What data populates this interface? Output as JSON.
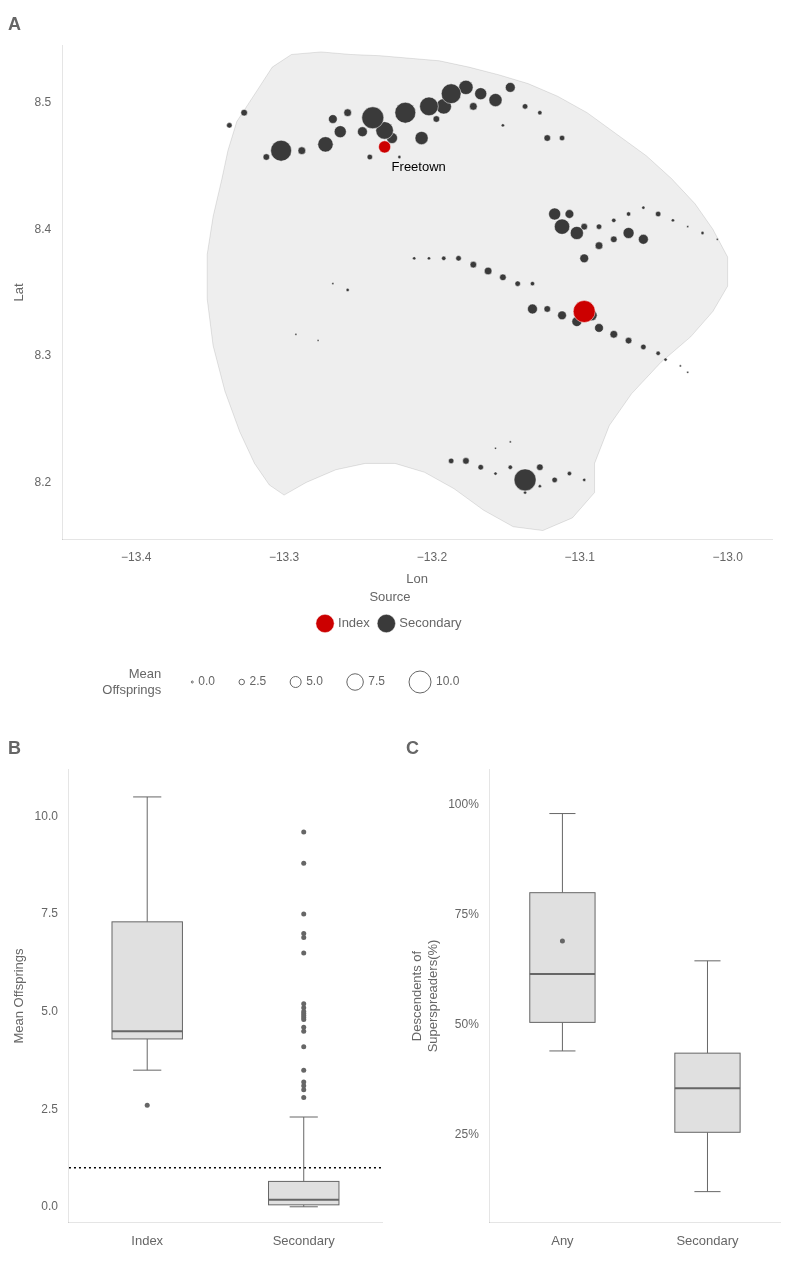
{
  "chart_data": [
    {
      "type": "bubble",
      "title": "A",
      "xlabel": "Lon",
      "ylabel": "Lat",
      "xlim": [
        -13.45,
        -12.97
      ],
      "xticks": [
        {
          "value": -13.4,
          "label": "−13.4"
        },
        {
          "value": -13.3,
          "label": "−13.3"
        },
        {
          "value": -13.2,
          "label": "−13.2"
        },
        {
          "value": -13.1,
          "label": "−13.1"
        },
        {
          "value": -13.0,
          "label": "−13.0"
        }
      ],
      "ylim": [
        8.155,
        8.545
      ],
      "yticks": [
        8.2,
        8.3,
        8.4,
        8.5
      ],
      "grid": false,
      "legend": "bottom",
      "legend_title": "Source",
      "series": [
        {
          "name": "Secondary",
          "color": "#3a3a3a",
          "points": [
            {
              "x": -13.277,
              "y": 8.312,
              "size": 0.8
            },
            {
              "x": -13.027,
              "y": 8.402,
              "size": 1.0
            },
            {
              "x": -13.007,
              "y": 8.392,
              "size": 1.0
            },
            {
              "x": -13.032,
              "y": 8.292,
              "size": 1.0
            },
            {
              "x": -13.027,
              "y": 8.287,
              "size": 1.0
            },
            {
              "x": -13.147,
              "y": 8.232,
              "size": 1.0
            },
            {
              "x": -13.157,
              "y": 8.227,
              "size": 1.0
            },
            {
              "x": -13.267,
              "y": 8.357,
              "size": 1.0
            },
            {
              "x": -13.292,
              "y": 8.317,
              "size": 1.0
            },
            {
              "x": -13.222,
              "y": 8.457,
              "size": 1.5
            },
            {
              "x": -13.152,
              "y": 8.482,
              "size": 1.5
            },
            {
              "x": -13.057,
              "y": 8.417,
              "size": 1.5
            },
            {
              "x": -13.037,
              "y": 8.407,
              "size": 1.5
            },
            {
              "x": -13.017,
              "y": 8.397,
              "size": 1.5
            },
            {
              "x": -13.042,
              "y": 8.297,
              "size": 1.5
            },
            {
              "x": -13.202,
              "y": 8.377,
              "size": 1.5
            },
            {
              "x": -13.212,
              "y": 8.377,
              "size": 1.5
            },
            {
              "x": -13.097,
              "y": 8.202,
              "size": 1.5
            },
            {
              "x": -13.157,
              "y": 8.207,
              "size": 1.5
            },
            {
              "x": -13.127,
              "y": 8.197,
              "size": 1.5
            },
            {
              "x": -13.137,
              "y": 8.192,
              "size": 1.5
            },
            {
              "x": -13.257,
              "y": 8.352,
              "size": 1.5
            },
            {
              "x": -13.127,
              "y": 8.492,
              "size": 2.0
            },
            {
              "x": -13.232,
              "y": 8.462,
              "size": 2.0
            },
            {
              "x": -13.077,
              "y": 8.407,
              "size": 2.0
            },
            {
              "x": -13.067,
              "y": 8.412,
              "size": 2.0
            },
            {
              "x": -13.047,
              "y": 8.302,
              "size": 2.0
            },
            {
              "x": -13.097,
              "y": 8.342,
              "size": 2.0
            },
            {
              "x": -13.132,
              "y": 8.357,
              "size": 2.0
            },
            {
              "x": -13.192,
              "y": 8.377,
              "size": 2.0
            },
            {
              "x": -13.107,
              "y": 8.207,
              "size": 2.0
            },
            {
              "x": -13.147,
              "y": 8.212,
              "size": 2.0
            },
            {
              "x": -13.137,
              "y": 8.497,
              "size": 2.5
            },
            {
              "x": -13.112,
              "y": 8.472,
              "size": 2.5
            },
            {
              "x": -13.337,
              "y": 8.482,
              "size": 2.5
            },
            {
              "x": -13.242,
              "y": 8.457,
              "size": 2.5
            },
            {
              "x": -13.087,
              "y": 8.402,
              "size": 2.5
            },
            {
              "x": -13.047,
              "y": 8.412,
              "size": 2.5
            },
            {
              "x": -13.057,
              "y": 8.307,
              "size": 2.5
            },
            {
              "x": -13.142,
              "y": 8.357,
              "size": 2.5
            },
            {
              "x": -13.182,
              "y": 8.377,
              "size": 2.5
            },
            {
              "x": -13.117,
              "y": 8.202,
              "size": 2.5
            },
            {
              "x": -13.167,
              "y": 8.212,
              "size": 2.5
            },
            {
              "x": -13.187,
              "y": 8.217,
              "size": 2.5
            },
            {
              "x": -13.312,
              "y": 8.457,
              "size": 3.0
            },
            {
              "x": -13.197,
              "y": 8.487,
              "size": 3.0
            },
            {
              "x": -13.122,
              "y": 8.472,
              "size": 3.0
            },
            {
              "x": -13.327,
              "y": 8.492,
              "size": 3.0
            },
            {
              "x": -13.077,
              "y": 8.392,
              "size": 3.0
            },
            {
              "x": -13.097,
              "y": 8.402,
              "size": 3.0
            },
            {
              "x": -13.067,
              "y": 8.312,
              "size": 3.0
            },
            {
              "x": -13.122,
              "y": 8.337,
              "size": 3.0
            },
            {
              "x": -13.152,
              "y": 8.362,
              "size": 3.0
            },
            {
              "x": -13.172,
              "y": 8.372,
              "size": 3.0
            },
            {
              "x": -13.127,
              "y": 8.212,
              "size": 3.0
            },
            {
              "x": -13.177,
              "y": 8.217,
              "size": 3.0
            },
            {
              "x": -13.288,
              "y": 8.462,
              "size": 3.5
            },
            {
              "x": -13.172,
              "y": 8.497,
              "size": 3.5
            },
            {
              "x": -13.257,
              "y": 8.492,
              "size": 3.5
            },
            {
              "x": -13.087,
              "y": 8.387,
              "size": 3.5
            },
            {
              "x": -13.077,
              "y": 8.317,
              "size": 3.5
            },
            {
              "x": -13.162,
              "y": 8.367,
              "size": 3.5
            },
            {
              "x": -13.267,
              "y": 8.487,
              "size": 4.0
            },
            {
              "x": -13.097,
              "y": 8.377,
              "size": 4.0
            },
            {
              "x": -13.107,
              "y": 8.412,
              "size": 4.0
            },
            {
              "x": -13.112,
              "y": 8.332,
              "size": 4.0
            },
            {
              "x": -13.087,
              "y": 8.322,
              "size": 4.0
            },
            {
              "x": -13.147,
              "y": 8.512,
              "size": 4.5
            },
            {
              "x": -13.247,
              "y": 8.477,
              "size": 4.5
            },
            {
              "x": -13.057,
              "y": 8.392,
              "size": 4.5
            },
            {
              "x": -13.102,
              "y": 8.327,
              "size": 4.5
            },
            {
              "x": -13.132,
              "y": 8.337,
              "size": 4.5
            },
            {
              "x": -13.227,
              "y": 8.472,
              "size": 5.0
            },
            {
              "x": -13.067,
              "y": 8.397,
              "size": 5.0
            },
            {
              "x": -13.092,
              "y": 8.332,
              "size": 5.0
            },
            {
              "x": -13.167,
              "y": 8.507,
              "size": 5.5
            },
            {
              "x": -13.262,
              "y": 8.477,
              "size": 5.5
            },
            {
              "x": -13.117,
              "y": 8.412,
              "size": 5.5
            },
            {
              "x": -13.157,
              "y": 8.502,
              "size": 6.0
            },
            {
              "x": -13.207,
              "y": 8.472,
              "size": 6.0
            },
            {
              "x": -13.102,
              "y": 8.397,
              "size": 6.0
            },
            {
              "x": -13.177,
              "y": 8.512,
              "size": 6.5
            },
            {
              "x": -13.192,
              "y": 8.497,
              "size": 7.0
            },
            {
              "x": -13.272,
              "y": 8.467,
              "size": 7.0
            },
            {
              "x": -13.112,
              "y": 8.402,
              "size": 7.0
            },
            {
              "x": -13.232,
              "y": 8.478,
              "size": 8.0
            },
            {
              "x": -13.202,
              "y": 8.497,
              "size": 8.5
            },
            {
              "x": -13.187,
              "y": 8.507,
              "size": 9.0
            },
            {
              "x": -13.218,
              "y": 8.492,
              "size": 9.5
            },
            {
              "x": -13.302,
              "y": 8.462,
              "size": 9.5
            },
            {
              "x": -13.24,
              "y": 8.488,
              "size": 10.0
            },
            {
              "x": -13.137,
              "y": 8.202,
              "size": 10.0
            }
          ]
        },
        {
          "name": "Index",
          "color": "#cc0000",
          "points": [
            {
              "x": -13.232,
              "y": 8.465,
              "size": 5.5
            },
            {
              "x": -13.097,
              "y": 8.335,
              "size": 10.0
            }
          ]
        }
      ],
      "outline": {
        "color": "#eeeeee",
        "points": [
          [
            -13.295,
            8.538
          ],
          [
            -13.275,
            8.54
          ],
          [
            -13.255,
            8.538
          ],
          [
            -13.235,
            8.537
          ],
          [
            -13.215,
            8.535
          ],
          [
            -13.195,
            8.533
          ],
          [
            -13.175,
            8.528
          ],
          [
            -13.155,
            8.522
          ],
          [
            -13.135,
            8.515
          ],
          [
            -13.115,
            8.505
          ],
          [
            -13.095,
            8.492
          ],
          [
            -13.075,
            8.475
          ],
          [
            -13.055,
            8.458
          ],
          [
            -13.038,
            8.44
          ],
          [
            -13.022,
            8.42
          ],
          [
            -13.01,
            8.4
          ],
          [
            -13.0,
            8.378
          ],
          [
            -13.0,
            8.355
          ],
          [
            -13.01,
            8.335
          ],
          [
            -13.025,
            8.315
          ],
          [
            -13.045,
            8.295
          ],
          [
            -13.065,
            8.27
          ],
          [
            -13.08,
            8.245
          ],
          [
            -13.09,
            8.215
          ],
          [
            -13.09,
            8.192
          ],
          [
            -13.105,
            8.172
          ],
          [
            -13.125,
            8.162
          ],
          [
            -13.145,
            8.165
          ],
          [
            -13.165,
            8.178
          ],
          [
            -13.185,
            8.195
          ],
          [
            -13.205,
            8.208
          ],
          [
            -13.225,
            8.215
          ],
          [
            -13.245,
            8.215
          ],
          [
            -13.265,
            8.21
          ],
          [
            -13.285,
            8.2
          ],
          [
            -13.3,
            8.19
          ],
          [
            -13.31,
            8.198
          ],
          [
            -13.32,
            8.215
          ],
          [
            -13.33,
            8.24
          ],
          [
            -13.34,
            8.272
          ],
          [
            -13.348,
            8.308
          ],
          [
            -13.352,
            8.345
          ],
          [
            -13.352,
            8.38
          ],
          [
            -13.348,
            8.41
          ],
          [
            -13.342,
            8.44
          ],
          [
            -13.338,
            8.462
          ],
          [
            -13.332,
            8.485
          ],
          [
            -13.318,
            8.51
          ],
          [
            -13.308,
            8.528
          ],
          [
            -13.295,
            8.538
          ]
        ]
      },
      "annotations": [
        {
          "text": "Freetown",
          "x": -13.232,
          "y": 8.462
        }
      ],
      "size_legend": {
        "title": "Mean\nOffsprings",
        "values": [
          {
            "value": 0.0,
            "label": "0.0"
          },
          2.5,
          {
            "value": 5.0,
            "label": "5.0"
          },
          7.5,
          {
            "value": 10.0,
            "label": "10.0"
          }
        ]
      }
    },
    {
      "type": "box",
      "title": "B",
      "categories": [
        "Index",
        "Secondary"
      ],
      "ylabel": "Mean Offsprings",
      "ylim": [
        -0.4,
        11.2
      ],
      "yticks": [
        {
          "value": 0.0,
          "label": "0.0"
        },
        2.5,
        {
          "value": 5.0,
          "label": "5.0"
        },
        7.5,
        {
          "value": 10.0,
          "label": "10.0"
        }
      ],
      "grid": false,
      "color": "#e0e0e0",
      "hline": 1.0,
      "stats": [
        {
          "whislo": 3.5,
          "q1": 4.3,
          "med": 4.5,
          "q3": 7.3,
          "whishi": 10.5,
          "fliers": []
        },
        {
          "whislo": 0.0,
          "q1": 0.05,
          "med": 0.18,
          "q3": 0.65,
          "whishi": 2.3,
          "fliers": [
            2.6,
            2.8,
            3.0,
            3.1,
            3.2,
            3.5,
            4.1,
            4.5,
            4.6,
            4.8,
            4.85,
            4.9,
            4.95,
            5.0,
            5.1,
            5.2,
            6.5,
            6.9,
            7.0,
            7.5,
            8.8,
            9.6
          ]
        }
      ]
    },
    {
      "type": "box",
      "title": "C",
      "categories": [
        "Any",
        "Secondary"
      ],
      "ylabel": "Descendents of\nSuperspreaders(%)",
      "ylim": [
        0.05,
        1.08
      ],
      "yticks": [
        {
          "value": 0.25,
          "label": "25%"
        },
        {
          "value": 0.5,
          "label": "50%"
        },
        {
          "value": 0.75,
          "label": "75%"
        },
        {
          "value": 1.0,
          "label": "100%"
        }
      ],
      "grid": false,
      "color": "#e0e0e0",
      "stats": [
        {
          "whislo": 0.44,
          "q1": 0.505,
          "med": 0.615,
          "q3": 0.8,
          "whishi": 0.98,
          "fliers": [
            0.69
          ]
        },
        {
          "whislo": 0.12,
          "q1": 0.255,
          "med": 0.355,
          "q3": 0.435,
          "whishi": 0.645,
          "fliers": []
        }
      ]
    }
  ]
}
